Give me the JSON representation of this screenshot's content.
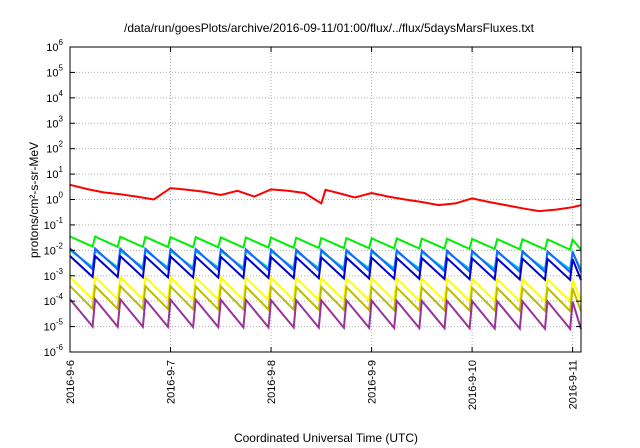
{
  "chart_data": {
    "type": "line",
    "title": "/data/run/goesPlots/archive/2016-09-11/01:00/flux/../flux/5daysMarsFluxes.txt",
    "xlabel": "Coordinated Universal Time (UTC)",
    "ylabel": "protons/cm²-s-sr-MeV",
    "y_scale": "log",
    "ylim": [
      1e-06,
      1000000.0
    ],
    "y_ticks": [
      {
        "value": 1e-06,
        "base": "10",
        "exp": "-6"
      },
      {
        "value": 1e-05,
        "base": "10",
        "exp": "-5"
      },
      {
        "value": 0.0001,
        "base": "10",
        "exp": "-4"
      },
      {
        "value": 0.001,
        "base": "10",
        "exp": "-3"
      },
      {
        "value": 0.01,
        "base": "10",
        "exp": "-2"
      },
      {
        "value": 0.1,
        "base": "10",
        "exp": "-1"
      },
      {
        "value": 1.0,
        "base": "10",
        "exp": "0"
      },
      {
        "value": 10.0,
        "base": "10",
        "exp": "1"
      },
      {
        "value": 100.0,
        "base": "10",
        "exp": "2"
      },
      {
        "value": 1000.0,
        "base": "10",
        "exp": "3"
      },
      {
        "value": 10000.0,
        "base": "10",
        "exp": "4"
      },
      {
        "value": 100000.0,
        "base": "10",
        "exp": "5"
      },
      {
        "value": 1000000.0,
        "base": "10",
        "exp": "6"
      }
    ],
    "x_ticks": [
      "2016-9-6",
      "2016-9-7",
      "2016-9-8",
      "2016-9-9",
      "2016-9-10",
      "2016-9-11"
    ],
    "xlim": [
      "2016-9-6 00:00",
      "2016-9-11 02:00"
    ],
    "grid": true,
    "legend": "none",
    "series": [
      {
        "color": "#ff0000",
        "points": [
          [
            "2016-9-6 00:00",
            3.8
          ],
          [
            "2016-9-6 04:00",
            2.6
          ],
          [
            "2016-9-6 08:00",
            1.9
          ],
          [
            "2016-9-6 12:00",
            1.6
          ],
          [
            "2016-9-6 16:00",
            1.3
          ],
          [
            "2016-9-6 20:00",
            1.0
          ],
          [
            "2016-9-7 00:00",
            2.8
          ],
          [
            "2016-9-7 04:00",
            2.4
          ],
          [
            "2016-9-7 08:00",
            2.0
          ],
          [
            "2016-9-7 12:00",
            1.5
          ],
          [
            "2016-9-7 16:00",
            2.2
          ],
          [
            "2016-9-7 20:00",
            1.3
          ],
          [
            "2016-9-8 00:00",
            2.5
          ],
          [
            "2016-9-8 04:00",
            2.2
          ],
          [
            "2016-9-8 08:00",
            1.8
          ],
          [
            "2016-9-8 12:00",
            0.7
          ],
          [
            "2016-9-8 13:00",
            2.4
          ],
          [
            "2016-9-8 16:00",
            1.8
          ],
          [
            "2016-9-8 20:00",
            1.2
          ],
          [
            "2016-9-9 00:00",
            1.8
          ],
          [
            "2016-9-9 04:00",
            1.3
          ],
          [
            "2016-9-9 08:00",
            1.0
          ],
          [
            "2016-9-9 12:00",
            0.8
          ],
          [
            "2016-9-9 16:00",
            0.6
          ],
          [
            "2016-9-9 20:00",
            0.7
          ],
          [
            "2016-9-10 00:00",
            1.1
          ],
          [
            "2016-9-10 04:00",
            0.8
          ],
          [
            "2016-9-10 08:00",
            0.6
          ],
          [
            "2016-9-10 12:00",
            0.45
          ],
          [
            "2016-9-10 16:00",
            0.35
          ],
          [
            "2016-9-10 20:00",
            0.4
          ],
          [
            "2016-9-11 00:00",
            0.5
          ],
          [
            "2016-9-11 02:00",
            0.6
          ]
        ]
      },
      {
        "color": "#00ee00",
        "pulse": {
          "peak": 0.035,
          "trough": 0.014,
          "start_trend": 1.0,
          "end_trend": 0.75,
          "period_hours": 6
        }
      },
      {
        "color": "#00cccc",
        "pulse": {
          "peak": 0.01,
          "trough": 0.0022,
          "start_trend": 1.0,
          "end_trend": 0.8,
          "period_hours": 6
        }
      },
      {
        "color": "#1a66ff",
        "pulse": {
          "peak": 0.012,
          "trough": 0.0018,
          "start_trend": 1.0,
          "end_trend": 0.75,
          "period_hours": 6
        }
      },
      {
        "color": "#0000cc",
        "pulse": {
          "peak": 0.006,
          "trough": 0.0009,
          "start_trend": 1.0,
          "end_trend": 0.75,
          "period_hours": 6
        }
      },
      {
        "color": "#ffff00",
        "pulse": {
          "peak": 0.0009,
          "trough": 0.00012,
          "start_trend": 1.0,
          "end_trend": 0.8,
          "period_hours": 6
        }
      },
      {
        "color": "#bbbb00",
        "pulse": {
          "peak": 0.0004,
          "trough": 5e-05,
          "start_trend": 1.0,
          "end_trend": 0.8,
          "period_hours": 6
        }
      },
      {
        "color": "#993399",
        "pulse": {
          "peak": 0.00012,
          "trough": 1e-05,
          "start_trend": 1.0,
          "end_trend": 0.8,
          "period_hours": 6
        }
      }
    ]
  }
}
